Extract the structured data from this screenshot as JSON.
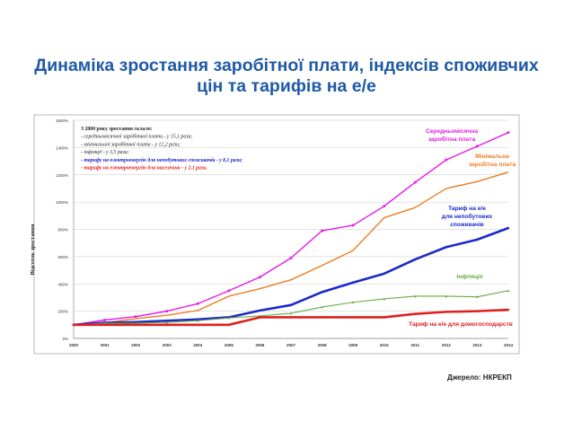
{
  "title_line1": "Динаміка зростання заробітної плати, індексів споживчих",
  "title_line2": "цін та тарифів на е/е",
  "source": "Джерело: НКРЕКП",
  "info_box": [
    {
      "text": "З 2000 року зростання склало:",
      "color": "#222222",
      "bold": true
    },
    {
      "text": "-  середньомісячної заробітної плати       - у 15,1 рази;",
      "color": "#222222",
      "bold": false
    },
    {
      "text": "-  мінімальної заробітної плати              - у 12,2 рази;",
      "color": "#222222",
      "bold": false
    },
    {
      "text": "- інфляції                                              - у  3,5 рази;",
      "color": "#222222",
      "bold": false
    },
    {
      "text": "- тарифу на електроенергію для непобутових споживачів  - у  8,1 рази;",
      "color": "#1c1cc8",
      "bold": true
    },
    {
      "text": "- тарифу на електроенергію для населення - у 2,1 рази.",
      "color": "#e02020",
      "bold": true
    }
  ],
  "chart_data": {
    "type": "line",
    "title": "Динаміка зростання заробітної плати, індексів споживчих цін та тарифів на е/е",
    "ylabel": "Відсоток зростання",
    "xlabel": "",
    "ylim": [
      0,
      1600
    ],
    "yticks": [
      "0%",
      "200%",
      "400%",
      "600%",
      "800%",
      "1000%",
      "1200%",
      "1400%",
      "1600%"
    ],
    "categories": [
      "2000",
      "2001",
      "2002",
      "2003",
      "2004",
      "2005",
      "2006",
      "2007",
      "2008",
      "2009",
      "2010",
      "2011",
      "2012",
      "2013",
      "2014"
    ],
    "grid": true,
    "series": [
      {
        "name": "Середньомісячна заробітна плата",
        "color": "#e619e6",
        "marker": "square",
        "width": 1.4,
        "values": [
          100,
          135,
          160,
          200,
          255,
          350,
          450,
          590,
          790,
          830,
          970,
          1145,
          1310,
          1410,
          1510
        ]
      },
      {
        "name": "Мінімальна заробітна плата",
        "color": "#ef7d22",
        "marker": "none",
        "width": 1.4,
        "values": [
          100,
          115,
          145,
          170,
          205,
          310,
          365,
          430,
          535,
          645,
          885,
          960,
          1100,
          1150,
          1220
        ]
      },
      {
        "name": "Тариф на е/е для непобутових споживачів",
        "color": "#1c2ac8",
        "marker": "diamond",
        "width": 2.6,
        "values": [
          100,
          115,
          120,
          130,
          140,
          155,
          205,
          245,
          340,
          410,
          475,
          580,
          670,
          725,
          810
        ]
      },
      {
        "name": "Інфляція",
        "color": "#6aaa46",
        "marker": "triangle",
        "width": 1.1,
        "values": [
          100,
          112,
          112,
          118,
          130,
          150,
          165,
          185,
          230,
          265,
          290,
          310,
          310,
          305,
          350
        ]
      },
      {
        "name": "Тариф на е/е для домогосподарств",
        "color": "#e02020",
        "marker": "diamond",
        "width": 2.6,
        "values": [
          100,
          100,
          100,
          100,
          100,
          100,
          155,
          155,
          155,
          155,
          155,
          180,
          195,
          200,
          210
        ]
      }
    ],
    "labels": [
      {
        "series": 0,
        "text": [
          "Середньомісячна",
          "заробітна плата"
        ],
        "color": "#e619e6"
      },
      {
        "series": 1,
        "text": [
          "Мінімальна",
          "заробітна плата"
        ],
        "color": "#ef7d22"
      },
      {
        "series": 2,
        "text": [
          "Тариф на е/е",
          "для непобутових",
          "споживачів"
        ],
        "color": "#1c2ac8"
      },
      {
        "series": 3,
        "text": [
          "Інфляція"
        ],
        "color": "#6aaa46"
      },
      {
        "series": 4,
        "text": [
          "Тариф на е/е для домогосподарств"
        ],
        "color": "#e02020"
      }
    ]
  }
}
